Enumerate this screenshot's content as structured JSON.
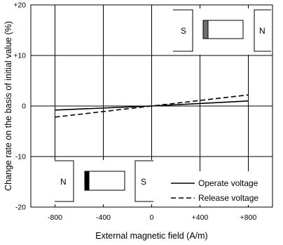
{
  "chart_data": {
    "type": "line",
    "title": "",
    "xlabel": "External magnetic field (A/m)",
    "ylabel": "Change rate on the basis of initial value (%)",
    "xlim": [
      -1000,
      1000
    ],
    "ylim": [
      -20,
      20
    ],
    "x_ticks": [
      {
        "value": -800,
        "label": "-800"
      },
      {
        "value": -400,
        "label": "-400"
      },
      {
        "value": 0,
        "label": "0"
      },
      {
        "value": 400,
        "label": "+400"
      },
      {
        "value": 800,
        "label": "+800"
      }
    ],
    "y_ticks": [
      {
        "value": 20,
        "label": "+20"
      },
      {
        "value": 10,
        "label": "+10"
      },
      {
        "value": 0,
        "label": "0"
      },
      {
        "value": -10,
        "label": "-10"
      },
      {
        "value": -20,
        "label": "-20"
      }
    ],
    "grid": true,
    "legend_position": "bottom-right",
    "series": [
      {
        "name": "Operate voltage",
        "style": "solid",
        "x": [
          -800,
          0,
          800
        ],
        "y": [
          -0.8,
          0,
          1.0
        ]
      },
      {
        "name": "Release voltage",
        "style": "dashed",
        "x": [
          -800,
          0,
          800
        ],
        "y": [
          -2.2,
          0,
          2.2
        ]
      }
    ],
    "insets": [
      {
        "position": "top-right",
        "left_pole": "S",
        "right_pole": "N"
      },
      {
        "position": "bottom-left",
        "left_pole": "N",
        "right_pole": "S"
      }
    ]
  }
}
